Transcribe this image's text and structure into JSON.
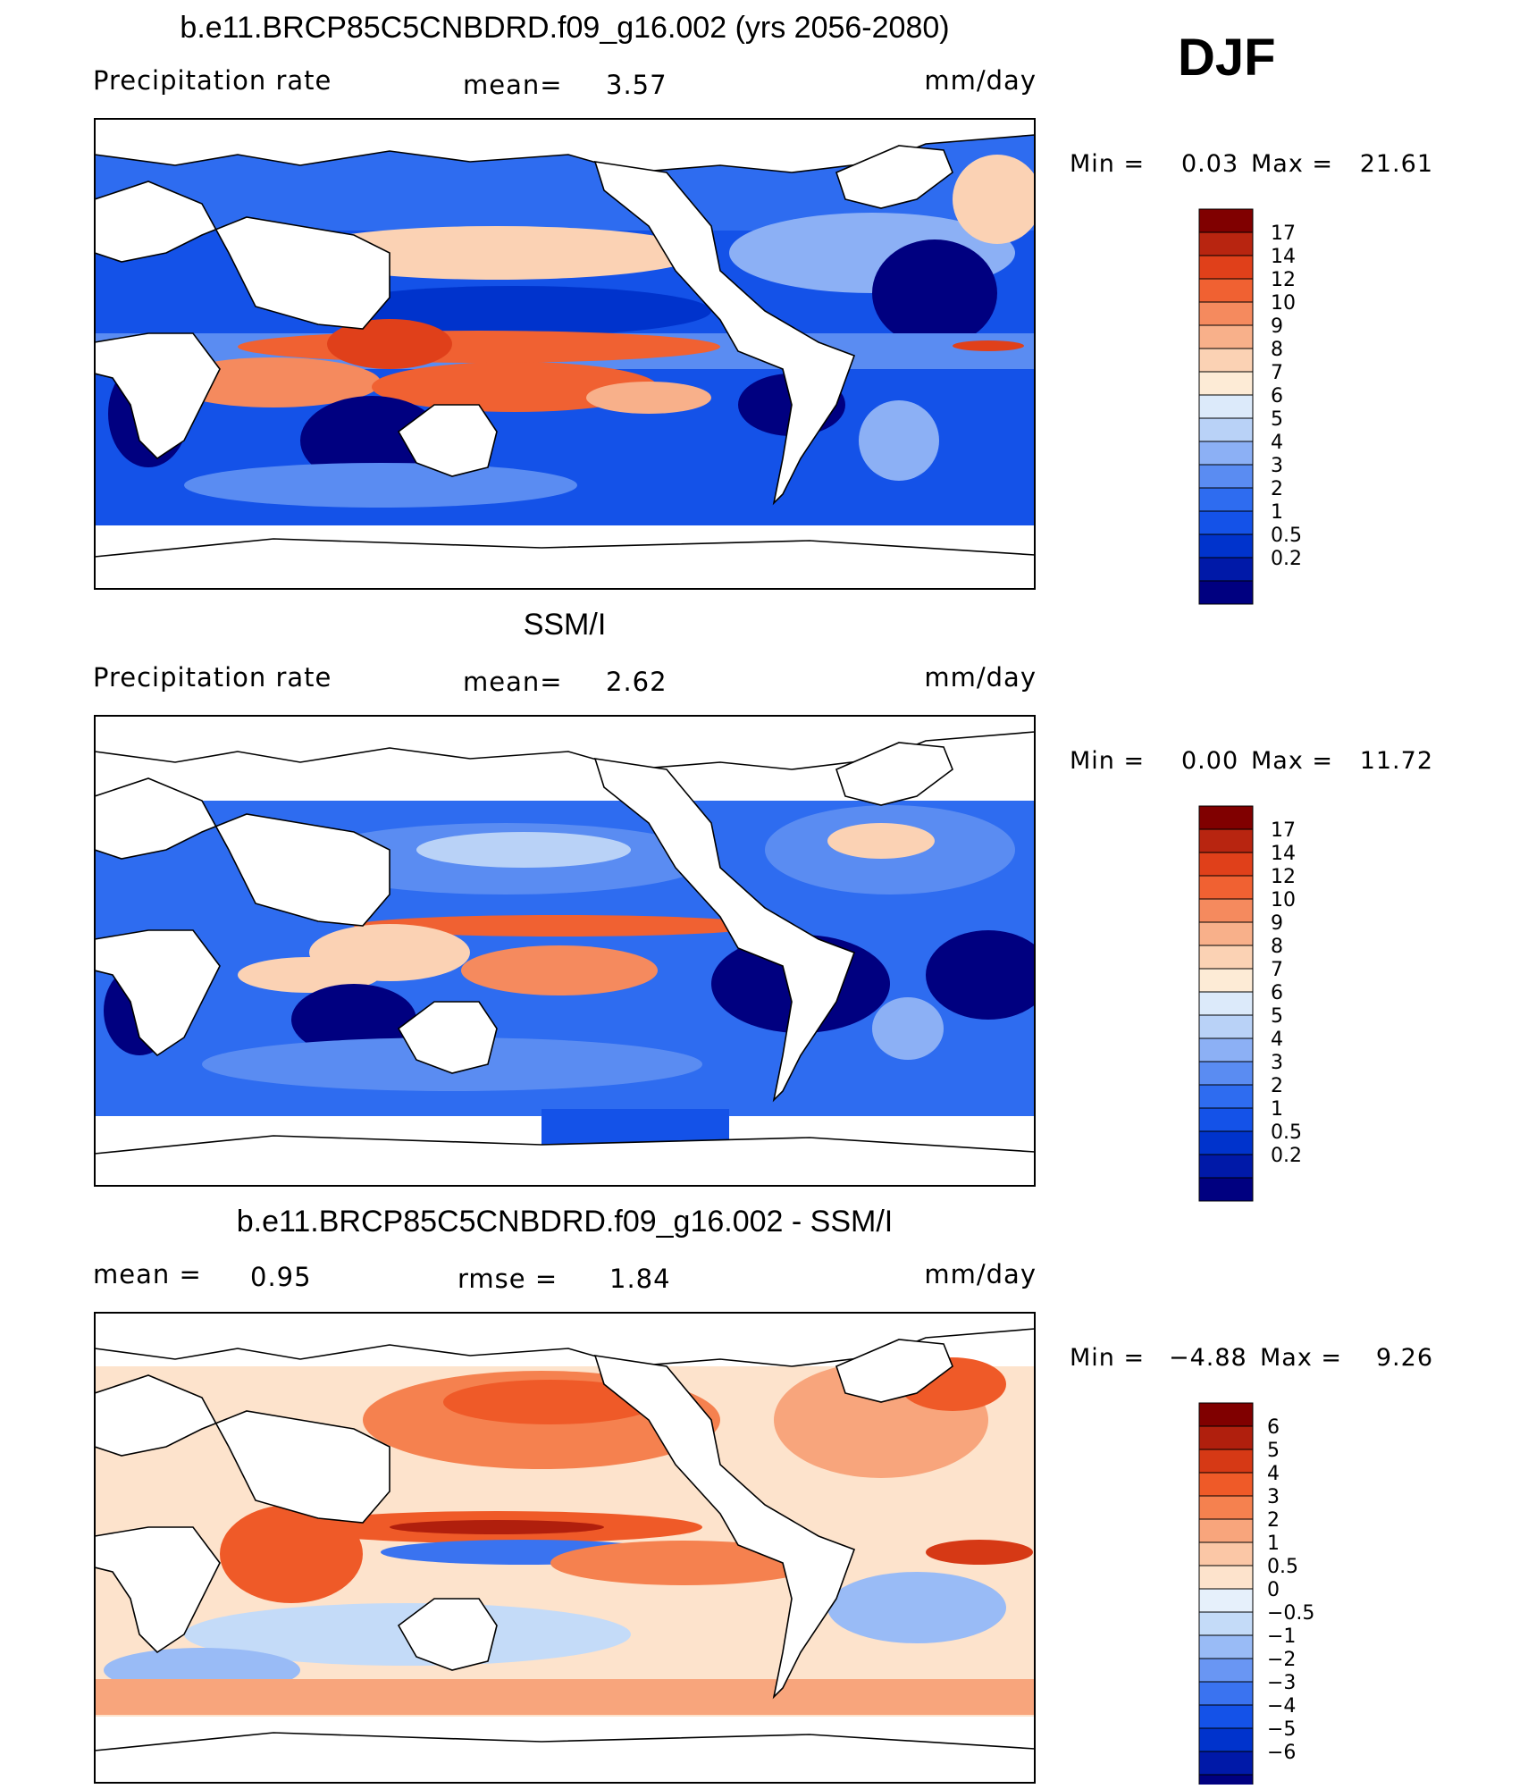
{
  "season": "DJF",
  "colors": {
    "precip_scale": [
      "#000080",
      "#0019a8",
      "#0033cc",
      "#1452e8",
      "#2e6cf0",
      "#5a8cf2",
      "#8cb0f5",
      "#b9d2f7",
      "#dceafa",
      "#fdebd6",
      "#fbd2b4",
      "#f8b08a",
      "#f58a5e",
      "#f06132",
      "#e0401a",
      "#b82510",
      "#800000"
    ],
    "diff_scale": [
      "#000080",
      "#0019a8",
      "#0033cc",
      "#1452e8",
      "#3a73f0",
      "#6996f3",
      "#99bbf6",
      "#c4dbf8",
      "#e6f0fb",
      "#fde3cc",
      "#fbc7a6",
      "#f8a57c",
      "#f5814f",
      "#ef5a28",
      "#d63915",
      "#b01f0d",
      "#800000"
    ]
  },
  "panels": [
    {
      "title": "b.e11.BRCP85C5CNBDRD.f09_g16.002 (yrs 2056-2080)",
      "left_label": "Precipitation  rate",
      "center_label": "mean=",
      "center_value": "3.57",
      "units": "mm/day",
      "min_label": "Min  =",
      "min_value": "0.03",
      "max_label": "Max  =",
      "max_value": "21.61"
    },
    {
      "title": "SSM/I",
      "left_label": "Precipitation  rate",
      "center_label": "mean=",
      "center_value": "2.62",
      "units": "mm/day",
      "min_label": "Min  =",
      "min_value": "0.00",
      "max_label": "Max  =",
      "max_value": "11.72"
    },
    {
      "title": "b.e11.BRCP85C5CNBDRD.f09_g16.002 - SSM/I",
      "left_label": "mean  =",
      "left_value": "0.95",
      "center_label": "rmse  =",
      "center_value": "1.84",
      "units": "mm/day",
      "min_label": "Min  =",
      "min_value": "−4.88",
      "max_label": "Max  =",
      "max_value": "9.26"
    }
  ],
  "chart_data": [
    {
      "type": "heatmap",
      "title": "b.e11.BRCP85C5CNBDRD.f09_g16.002 (yrs 2056-2080)",
      "variable": "Precipitation rate",
      "units": "mm/day",
      "mean": 3.57,
      "min": 0.03,
      "max": 21.61,
      "colorbar_levels": [
        "0.2",
        "0.5",
        "1",
        "2",
        "3",
        "4",
        "5",
        "6",
        "7",
        "8",
        "9",
        "10",
        "12",
        "14",
        "17"
      ]
    },
    {
      "type": "heatmap",
      "title": "SSM/I",
      "variable": "Precipitation rate",
      "units": "mm/day",
      "mean": 2.62,
      "min": 0.0,
      "max": 11.72,
      "colorbar_levels": [
        "0.2",
        "0.5",
        "1",
        "2",
        "3",
        "4",
        "5",
        "6",
        "7",
        "8",
        "9",
        "10",
        "12",
        "14",
        "17"
      ]
    },
    {
      "type": "heatmap",
      "title": "b.e11.BRCP85C5CNBDRD.f09_g16.002 - SSM/I",
      "units": "mm/day",
      "mean": 0.95,
      "rmse": 1.84,
      "min": -4.88,
      "max": 9.26,
      "colorbar_levels": [
        "−6",
        "−5",
        "−4",
        "−3",
        "−2",
        "−1",
        "−0.5",
        "0",
        "0.5",
        "1",
        "2",
        "3",
        "4",
        "5",
        "6"
      ]
    }
  ]
}
